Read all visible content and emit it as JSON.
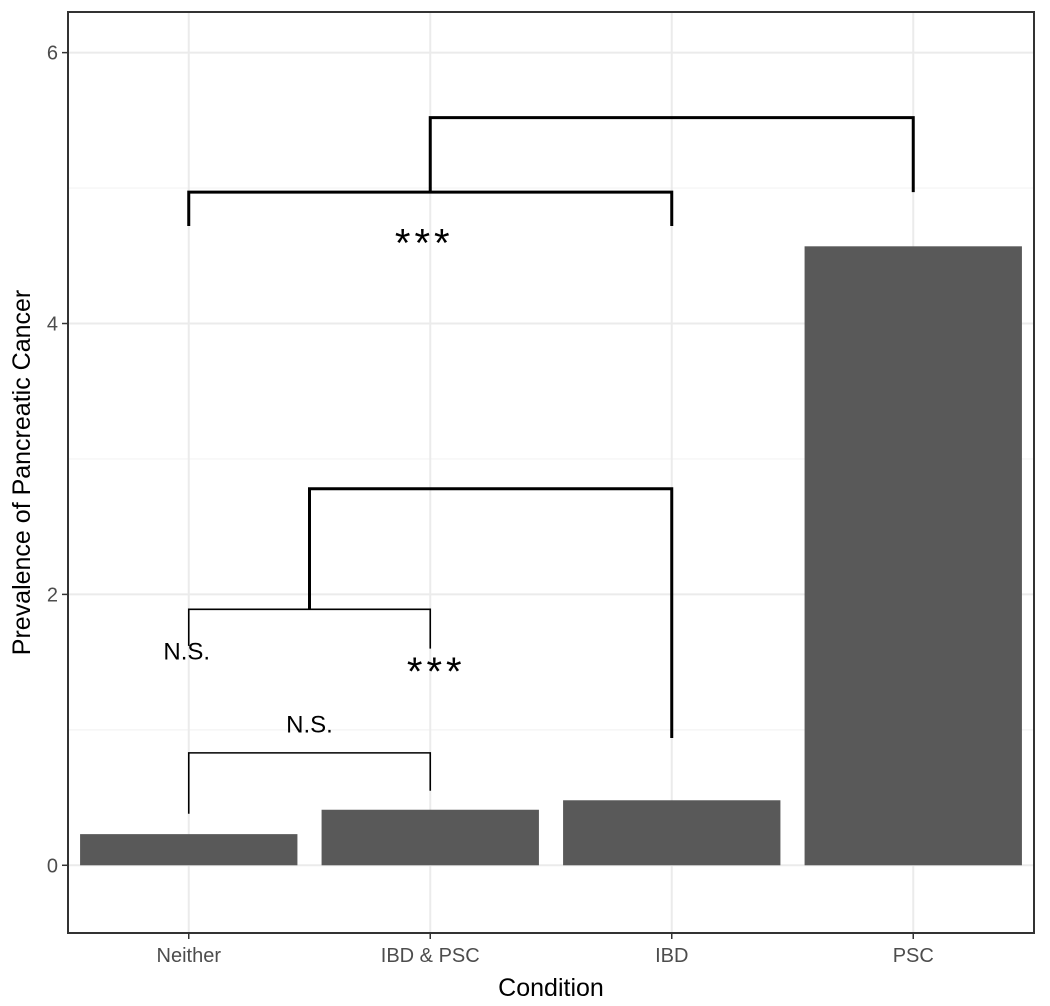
{
  "chart_data": {
    "type": "bar",
    "title": "",
    "xlabel": "Condition",
    "ylabel": "Prevalence of Pancreatic Cancer",
    "categories": [
      "Neither",
      "IBD & PSC",
      "IBD",
      "PSC"
    ],
    "values": [
      0.23,
      0.41,
      0.48,
      4.57
    ],
    "ylim": [
      -0.5,
      6.3
    ],
    "yticks": [
      0,
      2,
      4,
      6
    ],
    "ytick_labels": [
      "0",
      "2",
      "4",
      "6"
    ],
    "bar_color": "#595959",
    "grid": true,
    "annotations": [
      {
        "type": "bracket",
        "from_category": "Neither",
        "to_category": "IBD & PSC",
        "y": 0.83,
        "left_end": 0.38,
        "right_end": 0.55,
        "label": "N.S.",
        "label_y": 0.98
      },
      {
        "type": "bracket",
        "from_category": "Neither",
        "to_category": "IBD & PSC",
        "y": 1.89,
        "left_end": 1.62,
        "right_end": 1.6
      },
      {
        "type": "label",
        "text": "N.S.",
        "at_category": "Neither",
        "y": 1.52
      },
      {
        "type": "label",
        "text": "***",
        "at_category": "IBD & PSC",
        "y": 1.42
      },
      {
        "type": "bracket",
        "from_midpoint": [
          "Neither",
          "IBD & PSC"
        ],
        "to_category": "IBD",
        "y": 2.78,
        "left_end": 1.89,
        "right_end": 0.94
      },
      {
        "type": "bracket",
        "from_category": "Neither",
        "to_category": "IBD",
        "y": 4.97,
        "left_end": 4.72,
        "right_end": 4.72,
        "label": "***",
        "label_y": 4.6
      },
      {
        "type": "bracket",
        "from_midpoint": [
          "Neither",
          "IBD"
        ],
        "to_category": "PSC",
        "y": 5.52,
        "left_end": 4.97,
        "right_end": 4.97
      }
    ]
  }
}
